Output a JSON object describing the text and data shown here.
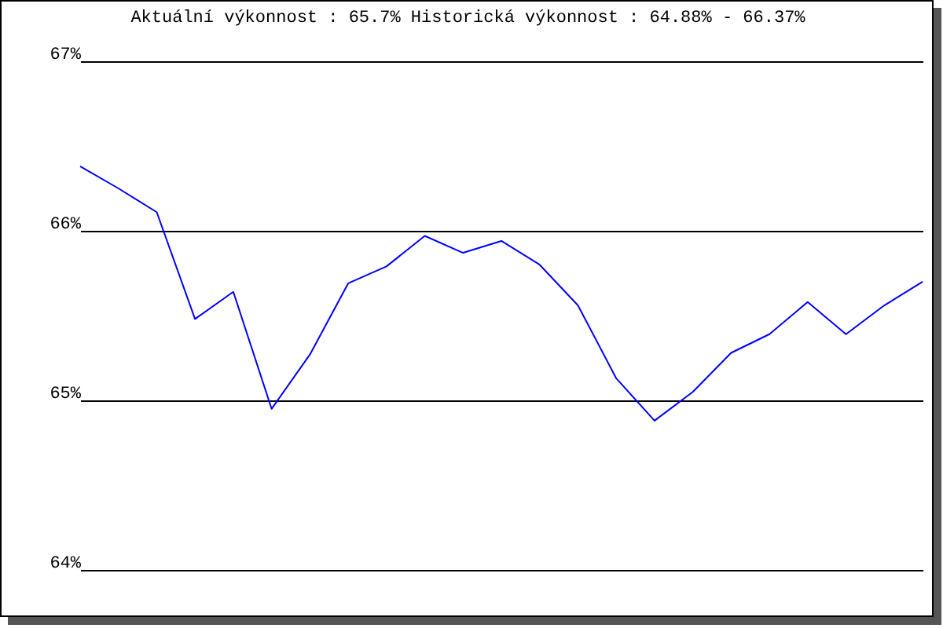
{
  "chart_data": {
    "type": "line",
    "title": "Aktuální výkonnost : 65.7%  Historická výkonnost : 64.88% - 66.37%",
    "categories": [
      null,
      null,
      null,
      null,
      null,
      null,
      null,
      null,
      null,
      null,
      null,
      null,
      null,
      null,
      null,
      null,
      null,
      null,
      null,
      null,
      null,
      null,
      null
    ],
    "series": [
      {
        "color": "#0000ff",
        "values": [
          66.38,
          66.25,
          66.11,
          65.48,
          65.64,
          64.95,
          65.27,
          65.69,
          65.79,
          65.97,
          65.87,
          65.94,
          65.8,
          65.56,
          65.13,
          64.88,
          65.05,
          65.28,
          65.39,
          65.58,
          65.39,
          65.56,
          65.7
        ]
      }
    ],
    "ylim": [
      64,
      67
    ],
    "yticks": [
      {
        "value": 64,
        "label": "64%"
      },
      {
        "value": 65,
        "label": "65%"
      },
      {
        "value": 66,
        "label": "66%"
      },
      {
        "value": 67,
        "label": "67%"
      }
    ],
    "grid": "y",
    "legend": false,
    "tick_labels": "y",
    "marker": "none",
    "line_style": "solid"
  }
}
